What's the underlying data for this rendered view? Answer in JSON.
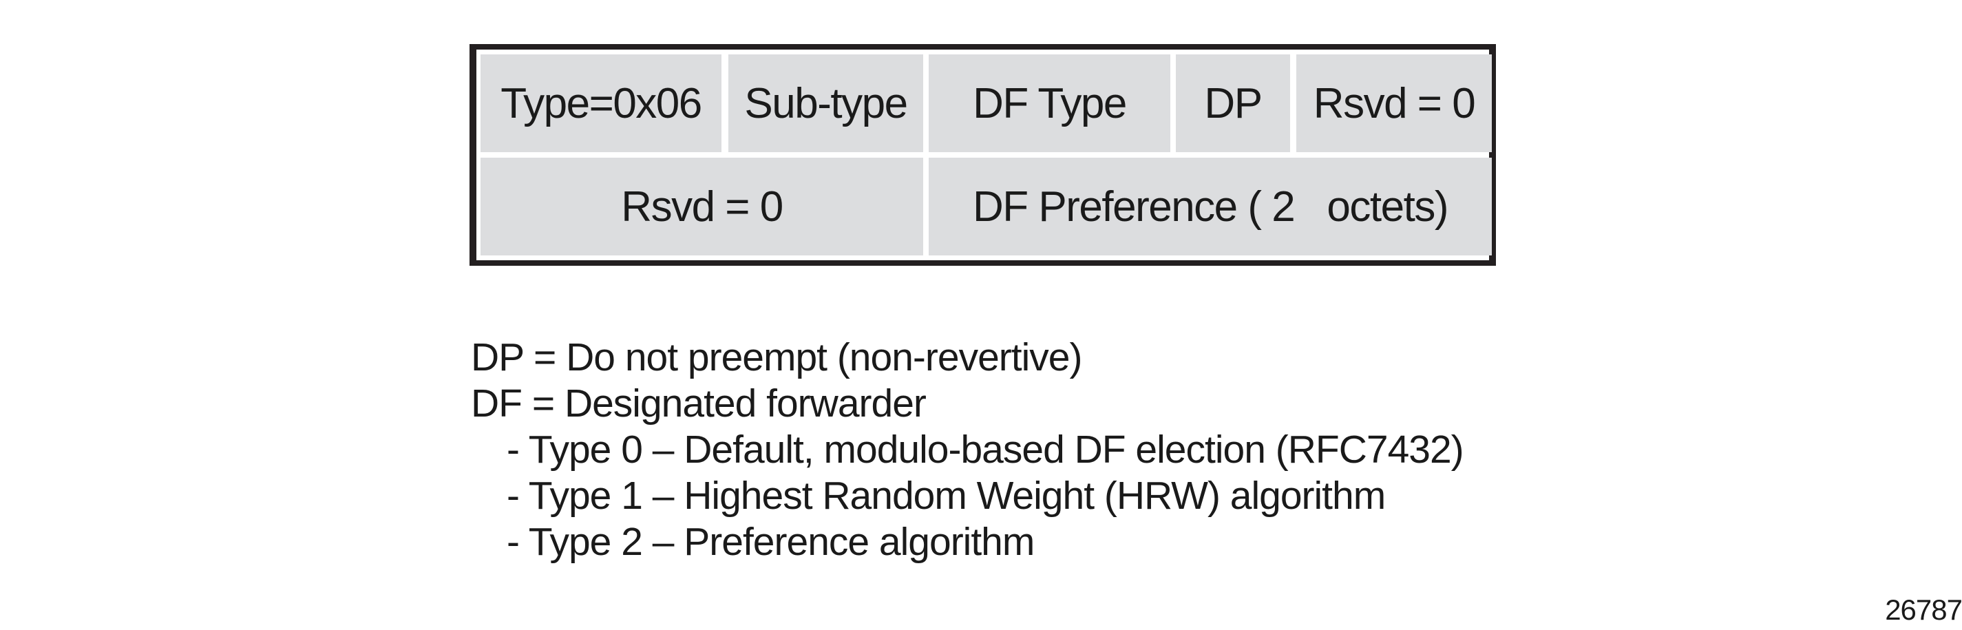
{
  "packet": {
    "row1": [
      "Type=0x06",
      "Sub-type",
      "DF Type",
      "DP",
      "Rsvd = 0"
    ],
    "row2": [
      "Rsvd = 0",
      "DF Preference ( 2   octets)"
    ]
  },
  "legend": [
    "DP = Do not preempt (non-revertive)",
    "DF = Designated forwarder",
    "- Type 0 – Default, modulo-based DF election (RFC7432)",
    "- Type 1 – Highest Random Weight (HRW) algorithm",
    "- Type 2 – Preference algorithm"
  ],
  "figure_number": "26787",
  "colors": {
    "cell_fill": "#dcdddf",
    "border": "#231f20"
  }
}
